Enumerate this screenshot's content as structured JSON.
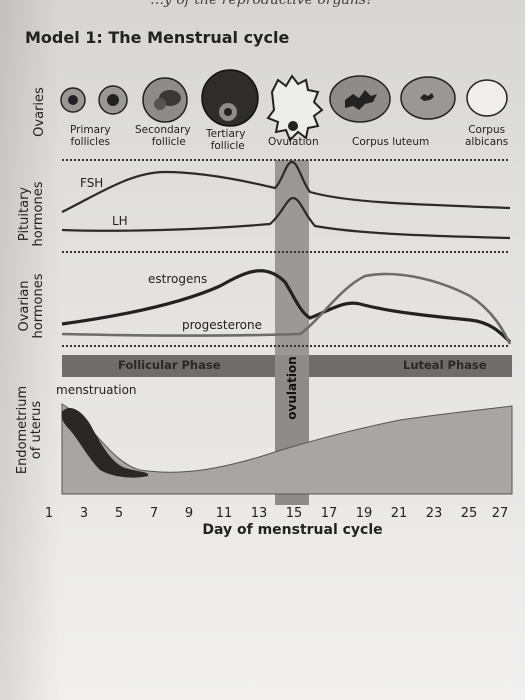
{
  "header_fragment": "…y of the reproductive organs?",
  "title": "Model 1: The Menstrual cycle",
  "row_labels": {
    "ovaries": "Ovaries",
    "pituitary": [
      "Pituitary",
      "hormones"
    ],
    "ovarian": [
      "Ovarian",
      "hormones"
    ],
    "endometrium": [
      "Endometrium",
      "of uterus"
    ]
  },
  "follicle_stages": [
    {
      "line1": "Primary",
      "line2": "follicles"
    },
    {
      "line1": "Secondary",
      "line2": "follicle"
    },
    {
      "line1": "Tertiary",
      "line2": "follicle"
    },
    {
      "line1": "Ovulation",
      "line2": ""
    },
    {
      "line1": "Corpus luteum",
      "line2": ""
    },
    {
      "line1": "Corpus",
      "line2": "albicans"
    }
  ],
  "hormone_labels": {
    "fsh": "FSH",
    "lh": "LH",
    "estrogen": "estrogens",
    "progesterone": "progesterone"
  },
  "phases": {
    "follicular": "Follicular Phase",
    "ovulation": "ovulation",
    "luteal": "Luteal Phase"
  },
  "menstruation_label": "menstruation",
  "x_ticks": [
    "1",
    "3",
    "5",
    "7",
    "9",
    "11",
    "13",
    "15",
    "17",
    "19",
    "21",
    "23",
    "25",
    "27"
  ],
  "xlabel": "Day of menstrual cycle",
  "colors": {
    "band": "#8e8c88",
    "phase_bar": "#6f6d6a",
    "endometrium": "#a8a6a2",
    "menstruation": "#2a2826",
    "lines": "#2b2b2b",
    "estrogen_line": "#6e6c69"
  }
}
